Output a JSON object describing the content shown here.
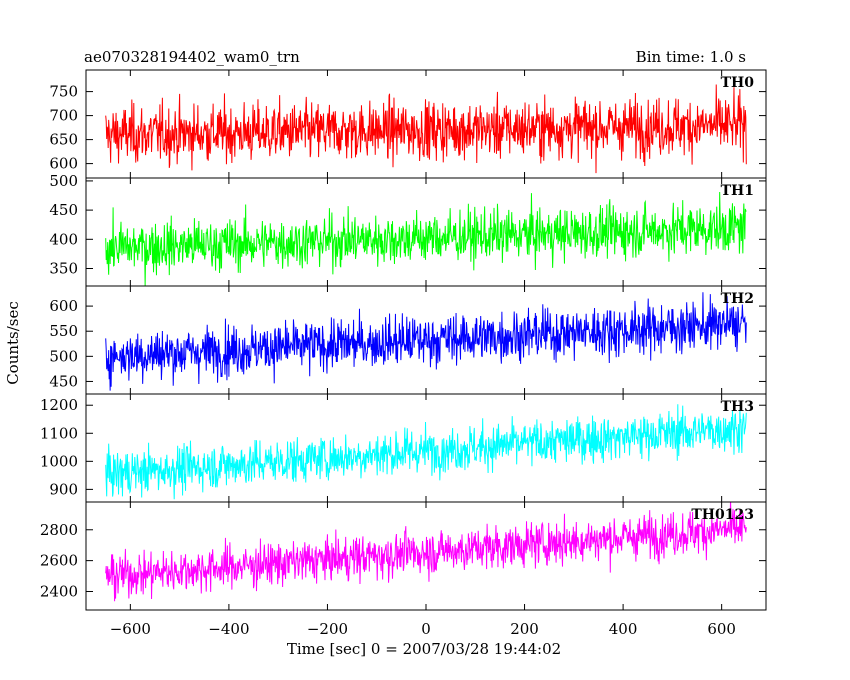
{
  "header": {
    "title": "ae070328194402_wam0_trn",
    "bin_time": "Bin time: 1.0 s"
  },
  "axes": {
    "xlabel": "Time [sec] 0 = 2007/03/28 19:44:02",
    "ylabel": "Counts/sec"
  },
  "chart_data": {
    "type": "line",
    "title": "ae070328194402_wam0_trn",
    "subtitle": "Bin time: 1.0 s",
    "xlabel": "Time [sec] 0 = 2007/03/28 19:44:02",
    "ylabel": "Counts/sec",
    "xlim": [
      -690,
      690
    ],
    "x_range": [
      -650,
      650
    ],
    "bin_time_sec": 1.0,
    "xticks": [
      -600,
      -400,
      -200,
      0,
      200,
      400,
      600
    ],
    "grid": false,
    "panels": [
      {
        "name": "TH0",
        "color": "#ff0000",
        "ylim": [
          570,
          795
        ],
        "yticks": [
          600,
          650,
          700,
          750
        ],
        "mean_start": 660,
        "mean_end": 680,
        "noise_sd": 30
      },
      {
        "name": "TH1",
        "color": "#00ff00",
        "ylim": [
          320,
          505
        ],
        "yticks": [
          350,
          400,
          450,
          500
        ],
        "mean_start": 385,
        "mean_end": 420,
        "noise_sd": 22
      },
      {
        "name": "TH2",
        "color": "#0000ff",
        "ylim": [
          425,
          640
        ],
        "yticks": [
          450,
          500,
          550,
          600
        ],
        "mean_start": 500,
        "mean_end": 565,
        "noise_sd": 25
      },
      {
        "name": "TH3",
        "color": "#00ffff",
        "ylim": [
          855,
          1240
        ],
        "yticks": [
          900,
          1000,
          1100,
          1200
        ],
        "mean_start": 955,
        "mean_end": 1120,
        "noise_sd": 40
      },
      {
        "name": "TH0123",
        "color": "#ff00ff",
        "ylim": [
          2280,
          2980
        ],
        "yticks": [
          2400,
          2600,
          2800
        ],
        "mean_start": 2500,
        "mean_end": 2810,
        "noise_sd": 70
      }
    ]
  }
}
